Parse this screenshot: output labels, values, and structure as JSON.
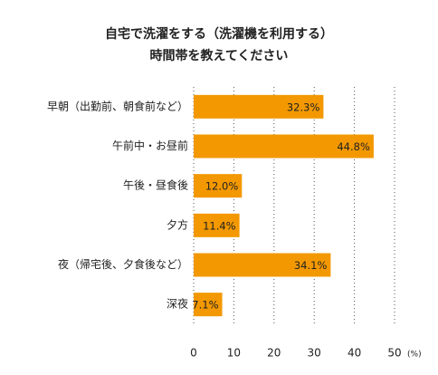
{
  "chart_data": {
    "type": "barh",
    "title_lines": [
      "自宅で洗濯をする（洗濯機を利用する）",
      "時間帯を教えてください"
    ],
    "categories": [
      "早朝（出勤前、朝食前など）",
      "午前中・お昼前",
      "午後・昼食後",
      "夕方",
      "夜（帰宅後、夕食後など）",
      "深夜"
    ],
    "values": [
      32.3,
      44.8,
      12.0,
      11.4,
      34.1,
      7.1
    ],
    "value_labels": [
      "32.3%",
      "44.8%",
      "12.0%",
      "11.4%",
      "34.1%",
      "7.1%"
    ],
    "color": "#f39800",
    "xlim": [
      0,
      50
    ],
    "xticks": [
      0,
      10,
      20,
      30,
      40,
      50
    ],
    "x_unit": "(%)",
    "grid": true
  }
}
